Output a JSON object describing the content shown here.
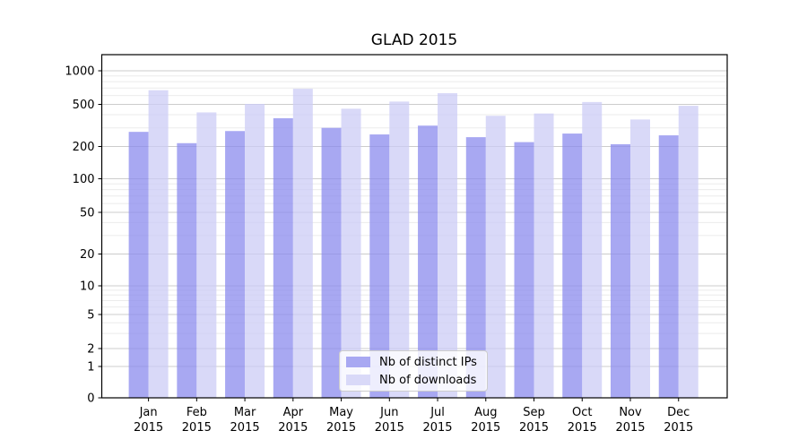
{
  "title": "GLAD 2015",
  "chart_data": {
    "type": "bar",
    "title": "GLAD 2015",
    "categories": [
      "Jan",
      "Feb",
      "Mar",
      "Apr",
      "May",
      "Jun",
      "Jul",
      "Aug",
      "Sep",
      "Oct",
      "Nov",
      "Dec"
    ],
    "x_year_label": "2015",
    "series": [
      {
        "name": "Nb of distinct IPs",
        "color": "#a8a8f2",
        "values": [
          275,
          215,
          280,
          370,
          300,
          260,
          315,
          245,
          220,
          265,
          210,
          255
        ]
      },
      {
        "name": "Nb of downloads",
        "color": "#d9d9f8",
        "values": [
          670,
          420,
          505,
          690,
          455,
          530,
          630,
          390,
          410,
          525,
          360,
          485
        ]
      }
    ],
    "yscale": "symlog",
    "yticks": [
      0,
      1,
      2,
      5,
      10,
      20,
      50,
      100,
      200,
      500,
      1000
    ],
    "yminorticks": [
      3,
      4,
      6,
      7,
      8,
      9,
      30,
      40,
      60,
      70,
      80,
      90,
      300,
      400,
      600,
      700,
      800,
      900
    ],
    "ylim": [
      0,
      1400
    ],
    "grid": true,
    "legend_position": "lower center",
    "grid_major_color": "#cccccc",
    "grid_minor_color": "#ebebeb"
  }
}
